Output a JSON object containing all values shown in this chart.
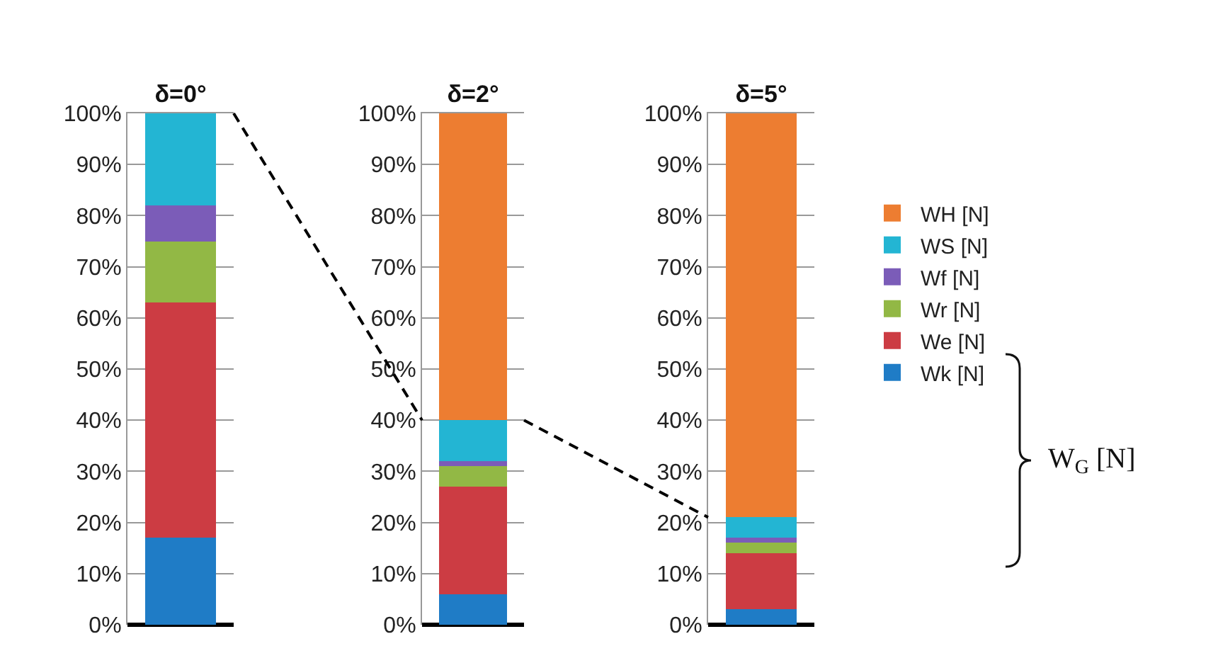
{
  "chart_data": [
    {
      "type": "bar",
      "stacked": true,
      "categories": [
        "δ=0°"
      ],
      "series": [
        {
          "color": "#1f7cc6",
          "values": [
            17
          ]
        },
        {
          "color": "#cc3c43",
          "values": [
            46
          ]
        },
        {
          "color": "#92b845",
          "values": [
            12
          ]
        },
        {
          "color": "#7b5cb8",
          "values": [
            7
          ]
        },
        {
          "color": "#23b5d3",
          "values": [
            18
          ]
        },
        {
          "color": "#ed7d31",
          "values": [
            0
          ]
        }
      ],
      "ylim": [
        0,
        100
      ],
      "yticks": [
        {
          "value": 0,
          "label": "0%"
        },
        {
          "value": 10,
          "label": "10%"
        },
        {
          "value": 20,
          "label": "20%"
        },
        {
          "value": 30,
          "label": "30%"
        },
        {
          "value": 40,
          "label": "40%"
        },
        {
          "value": 50,
          "label": "50%"
        },
        {
          "value": 60,
          "label": "60%"
        },
        {
          "value": 70,
          "label": "70%"
        },
        {
          "value": 80,
          "label": "80%"
        },
        {
          "value": 90,
          "label": "90%"
        },
        {
          "value": 100,
          "label": "100%"
        }
      ],
      "grid": "y"
    },
    {
      "type": "bar",
      "stacked": true,
      "categories": [
        "δ=2°"
      ],
      "series": [
        {
          "color": "#1f7cc6",
          "values": [
            6
          ]
        },
        {
          "color": "#cc3c43",
          "values": [
            21
          ]
        },
        {
          "color": "#92b845",
          "values": [
            4
          ]
        },
        {
          "color": "#7b5cb8",
          "values": [
            1
          ]
        },
        {
          "color": "#23b5d3",
          "values": [
            8
          ]
        },
        {
          "color": "#ed7d31",
          "values": [
            60
          ]
        }
      ],
      "ylim": [
        0,
        100
      ],
      "yticks": [
        {
          "value": 0,
          "label": "0%"
        },
        {
          "value": 10,
          "label": "10%"
        },
        {
          "value": 20,
          "label": "20%"
        },
        {
          "value": 30,
          "label": "30%"
        },
        {
          "value": 40,
          "label": "40%"
        },
        {
          "value": 50,
          "label": "50%"
        },
        {
          "value": 60,
          "label": "60%"
        },
        {
          "value": 70,
          "label": "70%"
        },
        {
          "value": 80,
          "label": "80%"
        },
        {
          "value": 90,
          "label": "90%"
        },
        {
          "value": 100,
          "label": "100%"
        }
      ],
      "grid": "y"
    },
    {
      "type": "bar",
      "stacked": true,
      "categories": [
        "δ=5°"
      ],
      "series": [
        {
          "name": "Wk [N]",
          "color": "#1f7cc6",
          "values": [
            3
          ]
        },
        {
          "name": "We [N]",
          "color": "#cc3c43",
          "values": [
            11
          ]
        },
        {
          "name": "Wr [N]",
          "color": "#92b845",
          "values": [
            2
          ]
        },
        {
          "name": "Wf [N]",
          "color": "#7b5cb8",
          "values": [
            1
          ]
        },
        {
          "name": "WS [N]",
          "color": "#23b5d3",
          "values": [
            4
          ]
        },
        {
          "name": "WH [N]",
          "color": "#ed7d31",
          "values": [
            79
          ]
        }
      ],
      "ylim": [
        0,
        100
      ],
      "yticks": [
        {
          "value": 0,
          "label": "0%"
        },
        {
          "value": 10,
          "label": "10%"
        },
        {
          "value": 20,
          "label": "20%"
        },
        {
          "value": 30,
          "label": "30%"
        },
        {
          "value": 40,
          "label": "40%"
        },
        {
          "value": 50,
          "label": "50%"
        },
        {
          "value": 60,
          "label": "60%"
        },
        {
          "value": 70,
          "label": "70%"
        },
        {
          "value": 80,
          "label": "80%"
        },
        {
          "value": 90,
          "label": "90%"
        },
        {
          "value": 100,
          "label": "100%"
        }
      ],
      "grid": "y",
      "legend": "right",
      "annotations": [
        "W$_{G}$ [N]"
      ]
    }
  ]
}
